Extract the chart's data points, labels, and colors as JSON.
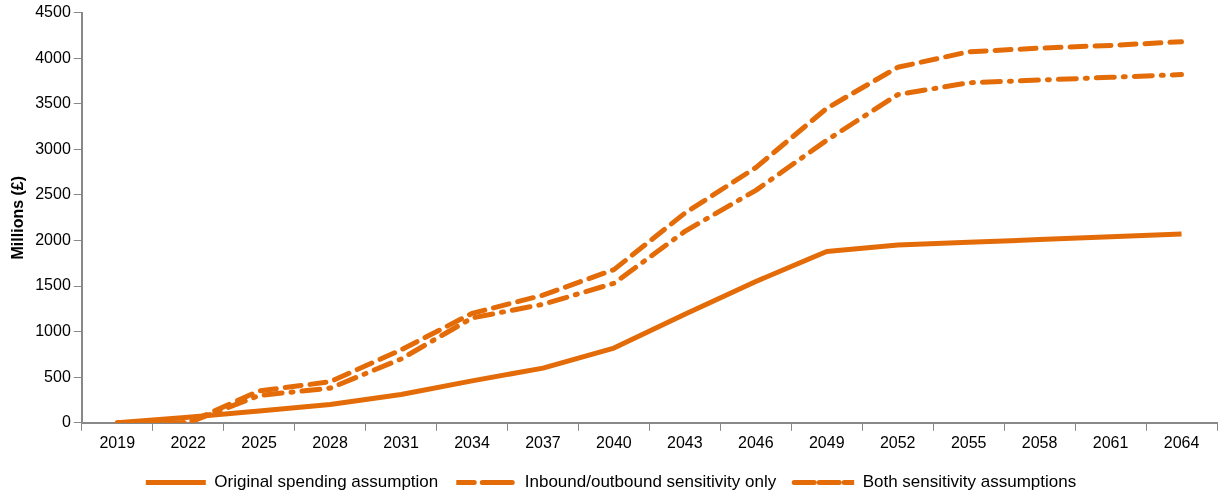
{
  "chart_data": {
    "type": "line",
    "ylabel": "Millions (£)",
    "categories": [
      "2019",
      "2022",
      "2025",
      "2028",
      "2031",
      "2034",
      "2037",
      "2040",
      "2043",
      "2046",
      "2049",
      "2052",
      "2055",
      "2058",
      "2061",
      "2064"
    ],
    "ylim": [
      0,
      4500
    ],
    "yticks": [
      0,
      500,
      1000,
      1500,
      2000,
      2500,
      3000,
      3500,
      4000,
      4500
    ],
    "grid": false,
    "legend": "bottom",
    "marker": "none",
    "series": [
      {
        "name": "Original spending assumption",
        "color": "#e36c09",
        "line_style": "solid",
        "values": [
          0,
          60,
          130,
          200,
          310,
          460,
          600,
          820,
          1190,
          1550,
          1880,
          1950,
          1980,
          2010,
          2040,
          2070
        ]
      },
      {
        "name": "Inbound/outbound sensitivity only",
        "color": "#e36c09",
        "line_style": "dashdot",
        "values": [
          0,
          0,
          300,
          380,
          700,
          1150,
          1300,
          1530,
          2100,
          2550,
          3100,
          3600,
          3730,
          3760,
          3790,
          3820
        ]
      },
      {
        "name": "Both sensitivity assumptions",
        "color": "#e36c09",
        "line_style": "dashed",
        "values": [
          0,
          0,
          350,
          450,
          800,
          1200,
          1400,
          1680,
          2300,
          2800,
          3450,
          3900,
          4070,
          4110,
          4140,
          4180
        ]
      }
    ]
  }
}
